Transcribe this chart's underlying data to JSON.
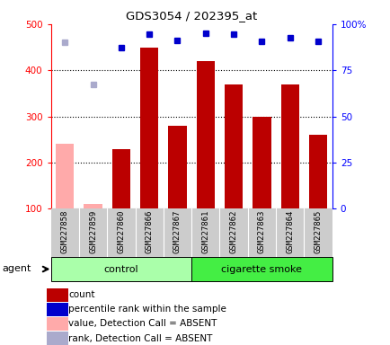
{
  "title": "GDS3054 / 202395_at",
  "samples": [
    "GSM227858",
    "GSM227859",
    "GSM227860",
    "GSM227866",
    "GSM227867",
    "GSM227861",
    "GSM227862",
    "GSM227863",
    "GSM227864",
    "GSM227865"
  ],
  "counts": [
    240,
    110,
    230,
    450,
    280,
    420,
    370,
    300,
    370,
    260
  ],
  "ranks": [
    460,
    370,
    450,
    478,
    465,
    480,
    478,
    463,
    470,
    463
  ],
  "absent_flags": [
    true,
    true,
    false,
    false,
    false,
    false,
    false,
    false,
    false,
    false
  ],
  "n_control": 5,
  "n_smoke": 5,
  "bar_color_present": "#bb0000",
  "bar_color_absent": "#ffaaaa",
  "dot_color_present": "#0000cc",
  "dot_color_absent": "#aaaacc",
  "ylim_left": [
    100,
    500
  ],
  "ylim_right": [
    0,
    100
  ],
  "yticks_left": [
    100,
    200,
    300,
    400,
    500
  ],
  "yticks_right": [
    0,
    25,
    50,
    75,
    100
  ],
  "ytick_right_labels": [
    "0",
    "25",
    "50",
    "75",
    "100%"
  ],
  "control_bg": "#aaffaa",
  "smoke_bg": "#44ee44",
  "agent_label": "agent",
  "control_label": "control",
  "smoke_label": "cigarette smoke",
  "grid_lines": [
    200,
    300,
    400
  ],
  "legend_items": [
    {
      "color": "#bb0000",
      "label": "count",
      "marker": "s"
    },
    {
      "color": "#0000cc",
      "label": "percentile rank within the sample",
      "marker": "s"
    },
    {
      "color": "#ffaaaa",
      "label": "value, Detection Call = ABSENT",
      "marker": "s"
    },
    {
      "color": "#aaaacc",
      "label": "rank, Detection Call = ABSENT",
      "marker": "s"
    }
  ]
}
